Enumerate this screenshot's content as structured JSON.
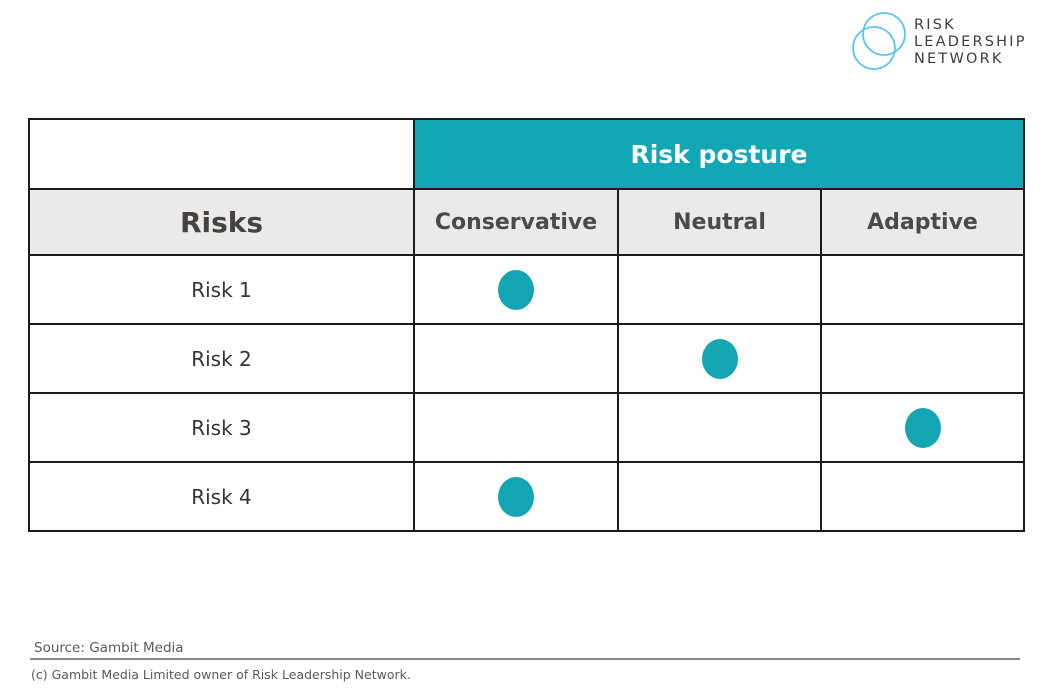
{
  "logo": {
    "line1": "RISK",
    "line2": "LEADERSHIP",
    "line3": "NETWORK"
  },
  "table": {
    "group_header": "Risk posture",
    "row_header": "Risks",
    "columns": [
      "Conservative",
      "Neutral",
      "Adaptive"
    ],
    "rows": [
      {
        "label": "Risk 1",
        "selected": "Conservative"
      },
      {
        "label": "Risk 2",
        "selected": "Neutral"
      },
      {
        "label": "Risk 3",
        "selected": "Adaptive"
      },
      {
        "label": "Risk 4",
        "selected": "Conservative"
      }
    ]
  },
  "chart_data": {
    "type": "table",
    "title": "Risk posture",
    "columns": [
      "Conservative",
      "Neutral",
      "Adaptive"
    ],
    "rows": [
      "Risk 1",
      "Risk 2",
      "Risk 3",
      "Risk 4"
    ],
    "markers": [
      {
        "row": "Risk 1",
        "column": "Conservative"
      },
      {
        "row": "Risk 2",
        "column": "Neutral"
      },
      {
        "row": "Risk 3",
        "column": "Adaptive"
      },
      {
        "row": "Risk 4",
        "column": "Conservative"
      }
    ],
    "marker_style": "filled teal dot"
  },
  "footer": {
    "source": "Source: Gambit Media",
    "copyright": "(c) Gambit Media Limited owner of Risk Leadership Network."
  },
  "colors": {
    "teal": "#11a7b4",
    "dot_teal": "#14a5b2",
    "header_bg": "#eaeaea",
    "border": "#1b1b1b",
    "logo_blue": "#5bc6e4",
    "logo_text": "#3c3c3c",
    "footer_text": "#595959"
  }
}
